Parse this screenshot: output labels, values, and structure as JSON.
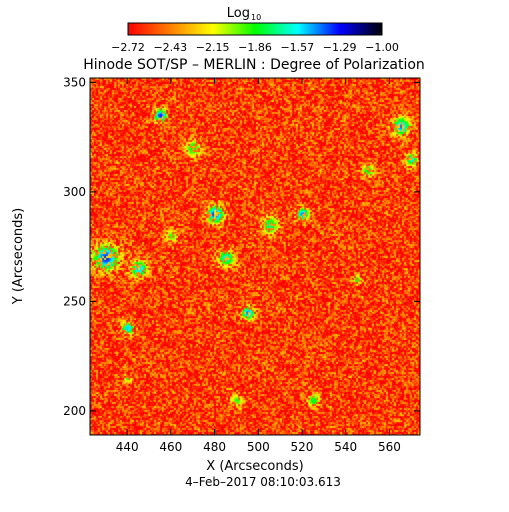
{
  "chart_data": {
    "type": "heatmap",
    "title": "Hinode SOT/SP – MERLIN : Degree of Polarization",
    "xlabel": "X (Arcseconds)",
    "ylabel": "Y (Arcseconds)",
    "footer": "4–Feb–2017 08:10:03.613",
    "colorbar": {
      "label_main": "Log",
      "label_sub": "10",
      "range": [
        -2.72,
        -1.0
      ],
      "ticks": [
        "−2.72",
        "−2.43",
        "−2.15",
        "−1.86",
        "−1.57",
        "−1.29",
        "−1.00"
      ],
      "colors": [
        "#ff0000",
        "#ff8000",
        "#ffff00",
        "#00ff00",
        "#00ffff",
        "#0000ff",
        "#000000"
      ]
    },
    "xlim": [
      423,
      574
    ],
    "ylim": [
      189,
      352
    ],
    "xticks": [
      440,
      460,
      480,
      500,
      520,
      540,
      560
    ],
    "yticks": [
      200,
      250,
      300,
      350
    ],
    "grid": false,
    "background_value": -2.6,
    "active_regions": [
      {
        "x": 430,
        "y": 270,
        "radius": 6,
        "value": -1.3
      },
      {
        "x": 445,
        "y": 265,
        "radius": 4,
        "value": -1.5
      },
      {
        "x": 455,
        "y": 335,
        "radius": 3,
        "value": -1.3
      },
      {
        "x": 480,
        "y": 290,
        "radius": 4,
        "value": -1.3
      },
      {
        "x": 485,
        "y": 270,
        "radius": 4,
        "value": -1.6
      },
      {
        "x": 470,
        "y": 320,
        "radius": 4,
        "value": -1.8
      },
      {
        "x": 505,
        "y": 285,
        "radius": 4,
        "value": -1.7
      },
      {
        "x": 520,
        "y": 290,
        "radius": 3,
        "value": -1.4
      },
      {
        "x": 495,
        "y": 245,
        "radius": 3,
        "value": -1.4
      },
      {
        "x": 440,
        "y": 238,
        "radius": 3,
        "value": -1.5
      },
      {
        "x": 565,
        "y": 330,
        "radius": 4,
        "value": -1.4
      },
      {
        "x": 570,
        "y": 315,
        "radius": 3,
        "value": -1.6
      },
      {
        "x": 550,
        "y": 310,
        "radius": 3,
        "value": -1.8
      },
      {
        "x": 460,
        "y": 280,
        "radius": 3,
        "value": -1.9
      },
      {
        "x": 490,
        "y": 205,
        "radius": 3,
        "value": -1.9
      },
      {
        "x": 525,
        "y": 205,
        "radius": 3,
        "value": -1.8
      },
      {
        "x": 545,
        "y": 260,
        "radius": 2,
        "value": -1.8
      },
      {
        "x": 440,
        "y": 215,
        "radius": 2,
        "value": -1.9
      }
    ]
  }
}
